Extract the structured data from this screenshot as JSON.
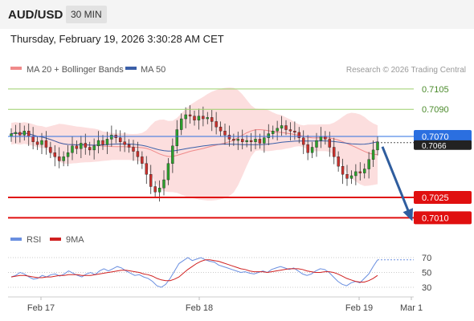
{
  "header": {
    "symbol": "AUD/USD",
    "timeframe": "30 MIN",
    "timestamp": "Thursday, February 19, 2026 3:30:28 AM CET"
  },
  "legend": {
    "bollinger_label": "MA 20 + Bollinger Bands",
    "ma50_label": "MA 50",
    "credit": "Research © 2026 Trading Central",
    "rsi_label": "RSI",
    "rsi_ma_label": "9MA"
  },
  "colors": {
    "up": "#2ca02c",
    "down": "#c9302c",
    "bollinger_fill": "#fbd3d3",
    "ma20": "#f08a8a",
    "ma50": "#3b5fa8",
    "resistance": "#9ccf6a",
    "support": "#e01010",
    "pivot": "#2b6fe0",
    "arrow": "#2f5d9e",
    "rsi": "#6a8fe0",
    "rsi_ma": "#d02020"
  },
  "chart_data": {
    "type": "candlestick",
    "x_ticks": [
      "Feb 17",
      "Feb 18",
      "Feb 19",
      "Mar 1"
    ],
    "levels": [
      {
        "value": 0.7105,
        "label": "0.7105",
        "kind": "resistance"
      },
      {
        "value": 0.709,
        "label": "0.7090",
        "kind": "resistance"
      },
      {
        "value": 0.707,
        "label": "0.7070",
        "kind": "pivot"
      },
      {
        "value": 0.7025,
        "label": "0.7025",
        "kind": "support"
      },
      {
        "value": 0.701,
        "label": "0.7010",
        "kind": "support"
      }
    ],
    "last_price_hidden_label": "0.7066",
    "forecast": {
      "from": 0.7066,
      "to": 0.701
    },
    "price_ylim": [
      0.7,
      0.7115
    ],
    "close_series": [
      0.7072,
      0.7073,
      0.7071,
      0.7074,
      0.707,
      0.7066,
      0.7064,
      0.7067,
      0.7062,
      0.7058,
      0.7055,
      0.7052,
      0.7055,
      0.7058,
      0.7063,
      0.7061,
      0.7065,
      0.7062,
      0.706,
      0.7063,
      0.7067,
      0.7064,
      0.7068,
      0.7071,
      0.7069,
      0.7066,
      0.7064,
      0.7062,
      0.7059,
      0.7055,
      0.705,
      0.7042,
      0.7033,
      0.7029,
      0.7032,
      0.7038,
      0.705,
      0.7063,
      0.7075,
      0.7083,
      0.7086,
      0.7085,
      0.7082,
      0.7085,
      0.7083,
      0.7084,
      0.7081,
      0.7077,
      0.7074,
      0.7071,
      0.7068,
      0.7067,
      0.7068,
      0.7066,
      0.7067,
      0.7066,
      0.7068,
      0.7065,
      0.7069,
      0.7072,
      0.7074,
      0.7076,
      0.7078,
      0.7075,
      0.7074,
      0.7073,
      0.7069,
      0.7064,
      0.7058,
      0.7062,
      0.7067,
      0.707,
      0.7068,
      0.7062,
      0.7055,
      0.7048,
      0.7042,
      0.7039,
      0.7041,
      0.7044,
      0.7043,
      0.7046,
      0.7053,
      0.706,
      0.7066
    ],
    "rsi": {
      "ticks": [
        70,
        50,
        30
      ],
      "ylim": [
        15,
        80
      ],
      "rsi_values": [
        44,
        46,
        50,
        48,
        44,
        41,
        42,
        46,
        44,
        47,
        48,
        45,
        48,
        52,
        49,
        46,
        44,
        48,
        50,
        47,
        52,
        55,
        52,
        55,
        58,
        56,
        52,
        49,
        46,
        47,
        44,
        42,
        38,
        32,
        30,
        34,
        42,
        52,
        62,
        66,
        70,
        66,
        68,
        70,
        67,
        65,
        64,
        60,
        58,
        56,
        54,
        52,
        50,
        51,
        49,
        48,
        50,
        52,
        50,
        54,
        56,
        58,
        56,
        54,
        56,
        52,
        48,
        46,
        48,
        52,
        55,
        54,
        50,
        44,
        38,
        34,
        32,
        36,
        38,
        36,
        42,
        48,
        58,
        67,
        67,
        67,
        67,
        67,
        67
      ],
      "ma_values": [
        44,
        45,
        46,
        46,
        45,
        44,
        43,
        43,
        44,
        44,
        45,
        46,
        46,
        47,
        47,
        47,
        46,
        46,
        46,
        47,
        48,
        49,
        50,
        51,
        52,
        53,
        53,
        52,
        51,
        50,
        48,
        47,
        45,
        42,
        40,
        39,
        39,
        41,
        44,
        49,
        54,
        58,
        62,
        65,
        67,
        67,
        66,
        65,
        63,
        61,
        59,
        57,
        55,
        54,
        52,
        51,
        51,
        51,
        50,
        51,
        52,
        53,
        54,
        55,
        55,
        55,
        54,
        52,
        51,
        50,
        50,
        51,
        51,
        50,
        48,
        45,
        42,
        40,
        38,
        37,
        37,
        39,
        42,
        46,
        50,
        50,
        50,
        50,
        50
      ]
    }
  }
}
